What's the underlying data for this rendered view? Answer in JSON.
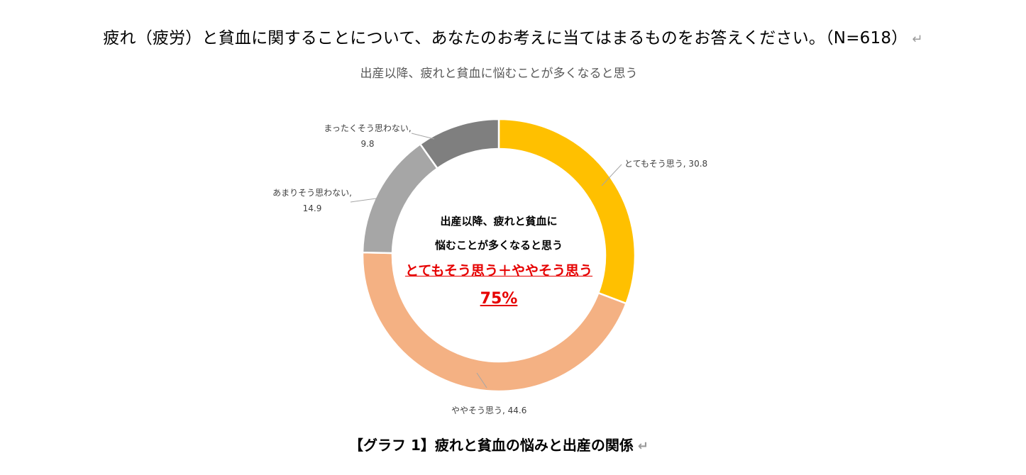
{
  "question": "疲れ（疲労）と貧血に関することについて、あなたのお考えに当てはまるものをお答えください。（N=618）",
  "paragraph_mark": "↵",
  "center": {
    "line1": "出産以降、疲れと貧血に",
    "line2": "悩むことが多くなると思う",
    "highlight": "とてもそう思う＋ややそう思う",
    "percent": "75%"
  },
  "caption": "【グラフ 1】疲れと貧血の悩みと出産の関係",
  "chart_data": {
    "type": "pie",
    "donut": true,
    "title": "出産以降、疲れと貧血に悩むことが多くなると思う",
    "slices": [
      {
        "label": "とてもそう思う",
        "value": 30.8,
        "color": "#FFC000"
      },
      {
        "label": "ややそう思う",
        "value": 44.6,
        "color": "#F4B183"
      },
      {
        "label": "あまりそう思わない",
        "value": 14.9,
        "color": "#A6A6A6"
      },
      {
        "label": "まったくそう思わない",
        "value": 9.8,
        "color": "#7F7F7F"
      }
    ]
  }
}
